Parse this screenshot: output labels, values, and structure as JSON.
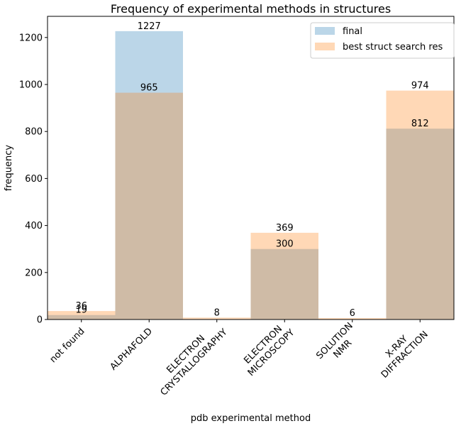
{
  "chart_data": {
    "type": "bar",
    "title": "Frequency of experimental methods in structures",
    "xlabel": "pdb experimental method",
    "ylabel": "frequency",
    "ylim": [
      0,
      1290
    ],
    "yticks": [
      0,
      200,
      400,
      600,
      800,
      1000,
      1200
    ],
    "categories": [
      [
        "not found"
      ],
      [
        "ALPHAFOLD"
      ],
      [
        "ELECTRON",
        "CRYSTALLOGRAPHY"
      ],
      [
        "ELECTRON",
        "MICROSCOPY"
      ],
      [
        "SOLUTION",
        "NMR"
      ],
      [
        "X-RAY",
        "DIFFRACTION"
      ]
    ],
    "series": [
      {
        "name": "final",
        "values": [
          19,
          1227,
          0,
          300,
          0,
          812
        ],
        "color": "#1f77b4",
        "alpha": 0.3
      },
      {
        "name": "best struct search res",
        "values": [
          36,
          965,
          8,
          369,
          6,
          974
        ],
        "color": "#ff7f0e",
        "alpha": 0.3
      }
    ],
    "legend": "top-right",
    "grid": false
  }
}
